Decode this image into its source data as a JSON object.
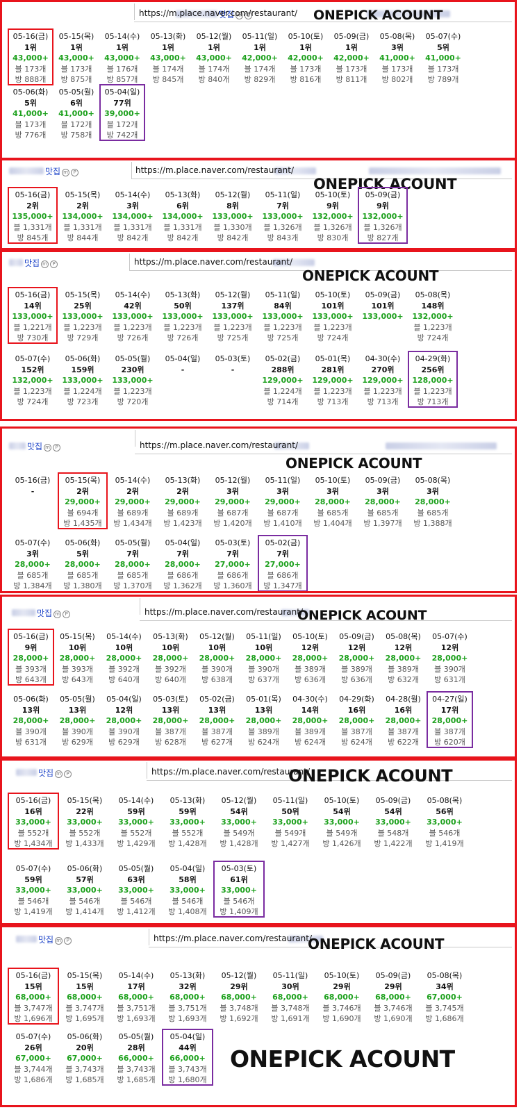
{
  "panels": [
    {
      "keyword": "맛집",
      "url": "https://m.place.naver.com/restaurant/",
      "title": "ONEPICK ACOUNT",
      "rows": [
        [
          {
            "date": "05-16(금)",
            "rank": "1위",
            "price": "43,000+",
            "blog": "블 173개",
            "visit": "방 888개",
            "mark": "red"
          },
          {
            "date": "05-15(목)",
            "rank": "1위",
            "price": "43,000+",
            "blog": "블 173개",
            "visit": "방 875개"
          },
          {
            "date": "05-14(수)",
            "rank": "1위",
            "price": "43,000+",
            "blog": "블 176개",
            "visit": "방 857개"
          },
          {
            "date": "05-13(화)",
            "rank": "1위",
            "price": "43,000+",
            "blog": "블 174개",
            "visit": "방 845개"
          },
          {
            "date": "05-12(월)",
            "rank": "1위",
            "price": "43,000+",
            "blog": "블 174개",
            "visit": "방 840개"
          },
          {
            "date": "05-11(일)",
            "rank": "1위",
            "price": "42,000+",
            "blog": "블 174개",
            "visit": "방 829개"
          },
          {
            "date": "05-10(토)",
            "rank": "1위",
            "price": "42,000+",
            "blog": "블 173개",
            "visit": "방 816개"
          },
          {
            "date": "05-09(금)",
            "rank": "1위",
            "price": "42,000+",
            "blog": "블 173개",
            "visit": "방 811개"
          },
          {
            "date": "05-08(목)",
            "rank": "3위",
            "price": "41,000+",
            "blog": "블 173개",
            "visit": "방 802개"
          },
          {
            "date": "05-07(수)",
            "rank": "5위",
            "price": "41,000+",
            "blog": "블 173개",
            "visit": "방 789개"
          }
        ],
        [
          {
            "date": "05-06(화)",
            "rank": "5위",
            "price": "41,000+",
            "blog": "블 173개",
            "visit": "방 776개"
          },
          {
            "date": "05-05(월)",
            "rank": "6위",
            "price": "41,000+",
            "blog": "블 172개",
            "visit": "방 758개"
          },
          {
            "date": "05-04(일)",
            "rank": "77위",
            "price": "39,000+",
            "blog": "블 172개",
            "visit": "방 742개",
            "mark": "purple"
          }
        ]
      ]
    },
    {
      "keyword": "맛집",
      "url": "https://m.place.naver.com/restaurant/",
      "title": "ONEPICK ACOUNT",
      "rows": [
        [
          {
            "date": "05-16(금)",
            "rank": "2위",
            "price": "135,000+",
            "blog": "블 1,331개",
            "visit": "방 845개",
            "mark": "red"
          },
          {
            "date": "05-15(목)",
            "rank": "2위",
            "price": "134,000+",
            "blog": "블 1,331개",
            "visit": "방 844개"
          },
          {
            "date": "05-14(수)",
            "rank": "3위",
            "price": "134,000+",
            "blog": "블 1,331개",
            "visit": "방 842개"
          },
          {
            "date": "05-13(화)",
            "rank": "6위",
            "price": "134,000+",
            "blog": "블 1,331개",
            "visit": "방 842개"
          },
          {
            "date": "05-12(월)",
            "rank": "8위",
            "price": "133,000+",
            "blog": "블 1,330개",
            "visit": "방 842개"
          },
          {
            "date": "05-11(일)",
            "rank": "7위",
            "price": "133,000+",
            "blog": "블 1,326개",
            "visit": "방 843개"
          },
          {
            "date": "05-10(토)",
            "rank": "9위",
            "price": "132,000+",
            "blog": "블 1,326개",
            "visit": "방 830개"
          },
          {
            "date": "05-09(금)",
            "rank": "9위",
            "price": "132,000+",
            "blog": "블 1,326개",
            "visit": "방 827개",
            "mark": "purple"
          }
        ]
      ]
    },
    {
      "keyword": "맛집",
      "url": "https://m.place.naver.com/restaurant/",
      "title": "ONEPICK ACOUNT",
      "rows": [
        [
          {
            "date": "05-16(금)",
            "rank": "14위",
            "price": "133,000+",
            "blog": "블 1,221개",
            "visit": "방 730개",
            "mark": "red"
          },
          {
            "date": "05-15(목)",
            "rank": "25위",
            "price": "133,000+",
            "blog": "블 1,223개",
            "visit": "방 729개"
          },
          {
            "date": "05-14(수)",
            "rank": "42위",
            "price": "133,000+",
            "blog": "블 1,223개",
            "visit": "방 726개"
          },
          {
            "date": "05-13(화)",
            "rank": "50위",
            "price": "133,000+",
            "blog": "블 1,223개",
            "visit": "방 726개"
          },
          {
            "date": "05-12(월)",
            "rank": "137위",
            "price": "133,000+",
            "blog": "블 1,223개",
            "visit": "방 725개"
          },
          {
            "date": "05-11(일)",
            "rank": "84위",
            "price": "133,000+",
            "blog": "블 1,223개",
            "visit": "방 725개"
          },
          {
            "date": "05-10(토)",
            "rank": "101위",
            "price": "133,000+",
            "blog": "블 1,223개",
            "visit": "방 724개"
          },
          {
            "date": "05-09(금)",
            "rank": "101위",
            "price": "133,000+",
            "blog": "",
            "visit": ""
          },
          {
            "date": "05-08(목)",
            "rank": "148위",
            "price": "132,000+",
            "blog": "블 1,223개",
            "visit": "방 724개"
          }
        ],
        [
          {
            "date": "05-07(수)",
            "rank": "152위",
            "price": "132,000+",
            "blog": "블 1,223개",
            "visit": "방 724개"
          },
          {
            "date": "05-06(화)",
            "rank": "159위",
            "price": "133,000+",
            "blog": "블 1,224개",
            "visit": "방 723개"
          },
          {
            "date": "05-05(월)",
            "rank": "230위",
            "price": "133,000+",
            "blog": "블 1,223개",
            "visit": "방 720개"
          },
          {
            "date": "05-04(일)",
            "rank": "-",
            "price": "",
            "blog": "",
            "visit": ""
          },
          {
            "date": "05-03(토)",
            "rank": "-",
            "price": "",
            "blog": "",
            "visit": ""
          },
          {
            "date": "05-02(금)",
            "rank": "288위",
            "price": "129,000+",
            "blog": "블 1,224개",
            "visit": "방 714개"
          },
          {
            "date": "05-01(목)",
            "rank": "281위",
            "price": "129,000+",
            "blog": "블 1,223개",
            "visit": "방 713개"
          },
          {
            "date": "04-30(수)",
            "rank": "270위",
            "price": "129,000+",
            "blog": "블 1,223개",
            "visit": "방 713개"
          },
          {
            "date": "04-29(화)",
            "rank": "256위",
            "price": "128,000+",
            "blog": "블 1,223개",
            "visit": "방 713개",
            "mark": "purple"
          }
        ]
      ]
    },
    {
      "keyword": "맛집",
      "url": "https://m.place.naver.com/restaurant/",
      "title": "ONEPICK ACOUNT",
      "rows": [
        [
          {
            "date": "05-16(금)",
            "rank": "-",
            "price": "",
            "blog": "",
            "visit": ""
          },
          {
            "date": "05-15(목)",
            "rank": "2위",
            "price": "29,000+",
            "blog": "블 694개",
            "visit": "방 1,435개",
            "mark": "red"
          },
          {
            "date": "05-14(수)",
            "rank": "2위",
            "price": "29,000+",
            "blog": "블 689개",
            "visit": "방 1,434개"
          },
          {
            "date": "05-13(화)",
            "rank": "2위",
            "price": "29,000+",
            "blog": "블 689개",
            "visit": "방 1,423개"
          },
          {
            "date": "05-12(월)",
            "rank": "3위",
            "price": "29,000+",
            "blog": "블 687개",
            "visit": "방 1,420개"
          },
          {
            "date": "05-11(일)",
            "rank": "3위",
            "price": "29,000+",
            "blog": "블 687개",
            "visit": "방 1,410개"
          },
          {
            "date": "05-10(토)",
            "rank": "3위",
            "price": "28,000+",
            "blog": "블 685개",
            "visit": "방 1,404개"
          },
          {
            "date": "05-09(금)",
            "rank": "3위",
            "price": "28,000+",
            "blog": "블 685개",
            "visit": "방 1,397개"
          },
          {
            "date": "05-08(목)",
            "rank": "3위",
            "price": "28,000+",
            "blog": "블 685개",
            "visit": "방 1,388개"
          }
        ],
        [
          {
            "date": "05-07(수)",
            "rank": "3위",
            "price": "28,000+",
            "blog": "블 685개",
            "visit": "방 1,384개"
          },
          {
            "date": "05-06(화)",
            "rank": "5위",
            "price": "28,000+",
            "blog": "블 685개",
            "visit": "방 1,380개"
          },
          {
            "date": "05-05(월)",
            "rank": "7위",
            "price": "28,000+",
            "blog": "블 685개",
            "visit": "방 1,370개"
          },
          {
            "date": "05-04(일)",
            "rank": "7위",
            "price": "28,000+",
            "blog": "블 686개",
            "visit": "방 1,362개"
          },
          {
            "date": "05-03(토)",
            "rank": "7위",
            "price": "27,000+",
            "blog": "블 686개",
            "visit": "방 1,360개"
          },
          {
            "date": "05-02(금)",
            "rank": "7위",
            "price": "27,000+",
            "blog": "블 686개",
            "visit": "방 1,347개",
            "mark": "purple"
          }
        ]
      ]
    },
    {
      "keyword": "맛집",
      "url": "https://m.place.naver.com/restaurant/",
      "title": "ONEPICK ACOUNT",
      "rows": [
        [
          {
            "date": "05-16(금)",
            "rank": "9위",
            "price": "28,000+",
            "blog": "블 393개",
            "visit": "방 643개",
            "mark": "red"
          },
          {
            "date": "05-15(목)",
            "rank": "10위",
            "price": "28,000+",
            "blog": "블 393개",
            "visit": "방 643개"
          },
          {
            "date": "05-14(수)",
            "rank": "10위",
            "price": "28,000+",
            "blog": "블 392개",
            "visit": "방 640개"
          },
          {
            "date": "05-13(화)",
            "rank": "10위",
            "price": "28,000+",
            "blog": "블 392개",
            "visit": "방 640개"
          },
          {
            "date": "05-12(월)",
            "rank": "10위",
            "price": "28,000+",
            "blog": "블 390개",
            "visit": "방 638개"
          },
          {
            "date": "05-11(일)",
            "rank": "10위",
            "price": "28,000+",
            "blog": "블 390개",
            "visit": "방 637개"
          },
          {
            "date": "05-10(토)",
            "rank": "12위",
            "price": "28,000+",
            "blog": "블 389개",
            "visit": "방 636개"
          },
          {
            "date": "05-09(금)",
            "rank": "12위",
            "price": "28,000+",
            "blog": "블 389개",
            "visit": "방 636개"
          },
          {
            "date": "05-08(목)",
            "rank": "12위",
            "price": "28,000+",
            "blog": "블 389개",
            "visit": "방 632개"
          },
          {
            "date": "05-07(수)",
            "rank": "12위",
            "price": "28,000+",
            "blog": "블 390개",
            "visit": "방 631개"
          }
        ],
        [
          {
            "date": "05-06(화)",
            "rank": "13위",
            "price": "28,000+",
            "blog": "블 390개",
            "visit": "방 631개"
          },
          {
            "date": "05-05(월)",
            "rank": "13위",
            "price": "28,000+",
            "blog": "블 390개",
            "visit": "방 629개"
          },
          {
            "date": "05-04(일)",
            "rank": "12위",
            "price": "28,000+",
            "blog": "블 390개",
            "visit": "방 629개"
          },
          {
            "date": "05-03(토)",
            "rank": "13위",
            "price": "28,000+",
            "blog": "블 387개",
            "visit": "방 628개"
          },
          {
            "date": "05-02(금)",
            "rank": "13위",
            "price": "28,000+",
            "blog": "블 387개",
            "visit": "방 627개"
          },
          {
            "date": "05-01(목)",
            "rank": "13위",
            "price": "28,000+",
            "blog": "블 389개",
            "visit": "방 624개"
          },
          {
            "date": "04-30(수)",
            "rank": "14위",
            "price": "28,000+",
            "blog": "블 389개",
            "visit": "방 624개"
          },
          {
            "date": "04-29(화)",
            "rank": "16위",
            "price": "28,000+",
            "blog": "블 387개",
            "visit": "방 624개"
          },
          {
            "date": "04-28(월)",
            "rank": "16위",
            "price": "28,000+",
            "blog": "블 387개",
            "visit": "방 622개"
          },
          {
            "date": "04-27(일)",
            "rank": "17위",
            "price": "28,000+",
            "blog": "블 387개",
            "visit": "방 620개",
            "mark": "purple"
          }
        ]
      ]
    },
    {
      "keyword": "맛집",
      "url": "https://m.place.naver.com/restaurant/",
      "title": "ONEPICK ACOUNT",
      "rows": [
        [
          {
            "date": "05-16(금)",
            "rank": "16위",
            "price": "33,000+",
            "blog": "블 552개",
            "visit": "방 1,434개",
            "mark": "red"
          },
          {
            "date": "05-15(목)",
            "rank": "22위",
            "price": "33,000+",
            "blog": "블 552개",
            "visit": "방 1,433개"
          },
          {
            "date": "05-14(수)",
            "rank": "59위",
            "price": "33,000+",
            "blog": "블 552개",
            "visit": "방 1,429개"
          },
          {
            "date": "05-13(화)",
            "rank": "59위",
            "price": "33,000+",
            "blog": "블 552개",
            "visit": "방 1,428개"
          },
          {
            "date": "05-12(월)",
            "rank": "54위",
            "price": "33,000+",
            "blog": "블 549개",
            "visit": "방 1,428개"
          },
          {
            "date": "05-11(일)",
            "rank": "50위",
            "price": "33,000+",
            "blog": "블 549개",
            "visit": "방 1,427개"
          },
          {
            "date": "05-10(토)",
            "rank": "54위",
            "price": "33,000+",
            "blog": "블 549개",
            "visit": "방 1,426개"
          },
          {
            "date": "05-09(금)",
            "rank": "54위",
            "price": "33,000+",
            "blog": "블 548개",
            "visit": "방 1,422개"
          },
          {
            "date": "05-08(목)",
            "rank": "56위",
            "price": "33,000+",
            "blog": "블 546개",
            "visit": "방 1,419개"
          }
        ],
        [
          {
            "date": "05-07(수)",
            "rank": "59위",
            "price": "33,000+",
            "blog": "블 546개",
            "visit": "방 1,419개"
          },
          {
            "date": "05-06(화)",
            "rank": "57위",
            "price": "33,000+",
            "blog": "블 546개",
            "visit": "방 1,414개"
          },
          {
            "date": "05-05(월)",
            "rank": "63위",
            "price": "33,000+",
            "blog": "블 546개",
            "visit": "방 1,412개"
          },
          {
            "date": "05-04(일)",
            "rank": "58위",
            "price": "33,000+",
            "blog": "블 546개",
            "visit": "방 1,408개"
          },
          {
            "date": "05-03(토)",
            "rank": "61위",
            "price": "33,000+",
            "blog": "블 546개",
            "visit": "방 1,409개",
            "mark": "purple"
          }
        ]
      ]
    },
    {
      "keyword": "맛집",
      "url": "https://m.place.naver.com/restaurant/",
      "title": "ONEPICK ACOUNT",
      "big_title": "ONEPICK ACOUNT",
      "rows": [
        [
          {
            "date": "05-16(금)",
            "rank": "15위",
            "price": "68,000+",
            "blog": "블 3,747개",
            "visit": "방 1,696개",
            "mark": "red"
          },
          {
            "date": "05-15(목)",
            "rank": "15위",
            "price": "68,000+",
            "blog": "블 3,747개",
            "visit": "방 1,695개"
          },
          {
            "date": "05-14(수)",
            "rank": "17위",
            "price": "68,000+",
            "blog": "블 3,751개",
            "visit": "방 1,693개"
          },
          {
            "date": "05-13(화)",
            "rank": "32위",
            "price": "68,000+",
            "blog": "블 3,751개",
            "visit": "방 1,693개"
          },
          {
            "date": "05-12(월)",
            "rank": "29위",
            "price": "68,000+",
            "blog": "블 3,748개",
            "visit": "방 1,692개"
          },
          {
            "date": "05-11(일)",
            "rank": "30위",
            "price": "68,000+",
            "blog": "블 3,748개",
            "visit": "방 1,691개"
          },
          {
            "date": "05-10(토)",
            "rank": "29위",
            "price": "68,000+",
            "blog": "블 3,746개",
            "visit": "방 1,690개"
          },
          {
            "date": "05-09(금)",
            "rank": "29위",
            "price": "68,000+",
            "blog": "블 3,746개",
            "visit": "방 1,690개"
          },
          {
            "date": "05-08(목)",
            "rank": "34위",
            "price": "67,000+",
            "blog": "블 3,745개",
            "visit": "방 1,686개"
          }
        ],
        [
          {
            "date": "05-07(수)",
            "rank": "26위",
            "price": "67,000+",
            "blog": "블 3,744개",
            "visit": "방 1,686개"
          },
          {
            "date": "05-06(화)",
            "rank": "20위",
            "price": "67,000+",
            "blog": "블 3,743개",
            "visit": "방 1,685개"
          },
          {
            "date": "05-05(월)",
            "rank": "28위",
            "price": "66,000+",
            "blog": "블 3,743개",
            "visit": "방 1,685개"
          },
          {
            "date": "05-04(일)",
            "rank": "44위",
            "price": "66,000+",
            "blog": "블 3,743개",
            "visit": "방 1,680개",
            "mark": "purple"
          }
        ]
      ]
    }
  ],
  "colors": {
    "frame": "#e8141c",
    "mark_red": "#e8141c",
    "mark_purple": "#7a2ca0",
    "price": "#1ea11e",
    "keyword": "#1e44c8"
  },
  "icons": [
    "blurred-name-placeholder",
    "m-badge-icon",
    "p-badge-icon"
  ],
  "badges": {
    "m": "m",
    "p": "P"
  }
}
